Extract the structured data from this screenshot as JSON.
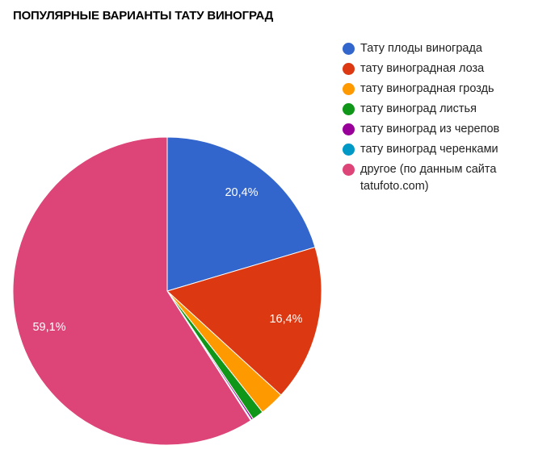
{
  "title": "ПОПУЛЯРНЫЕ ВАРИАНТЫ ТАТУ ВИНОГРАД",
  "legend": [
    {
      "label": "Тату плоды винограда",
      "color": "#3366cc"
    },
    {
      "label": "тату виноградная лоза",
      "color": "#dc3912"
    },
    {
      "label": "тату виноградная гроздь",
      "color": "#ff9900"
    },
    {
      "label": "тату виноград листья",
      "color": "#109618"
    },
    {
      "label": "тату виноград из черепов",
      "color": "#990099"
    },
    {
      "label": "тату виноград черенками",
      "color": "#0099c6"
    },
    {
      "label": "другое (по данным сайта tatufoto.com)",
      "color": "#dd4477"
    }
  ],
  "slice_labels": [
    "20,4%",
    "16,4%",
    "59,1%"
  ],
  "chart_data": {
    "type": "pie",
    "title": "ПОПУЛЯРНЫЕ ВАРИАНТЫ ТАТУ ВИНОГРАД",
    "categories": [
      "Тату плоды винограда",
      "тату виноградная лоза",
      "тату виноградная гроздь",
      "тату виноград листья",
      "тату виноград из черепов",
      "тату виноград черенками",
      "другое (по данным сайта tatufoto.com)"
    ],
    "values": [
      20.4,
      16.4,
      2.6,
      1.2,
      0.2,
      0.1,
      59.1
    ],
    "colors": [
      "#3366cc",
      "#dc3912",
      "#ff9900",
      "#109618",
      "#990099",
      "#0099c6",
      "#dd4477"
    ],
    "data_labels": [
      "20,4%",
      "16,4%",
      "",
      "",
      "",
      "",
      "59,1%"
    ],
    "legend_position": "right",
    "start_angle": "top, clockwise"
  }
}
